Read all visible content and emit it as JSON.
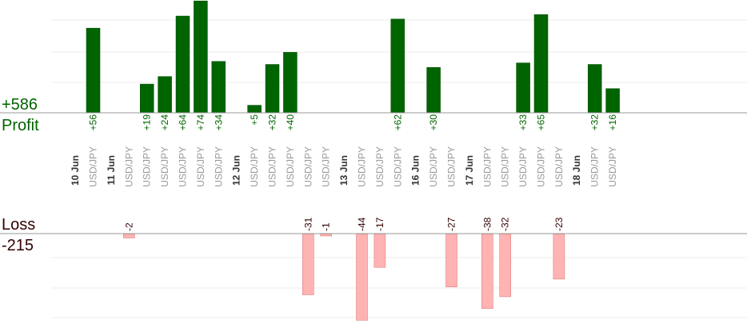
{
  "chart_data": {
    "type": "bar",
    "profit": {
      "label": "Profit",
      "total": "+586",
      "color": "#006400"
    },
    "loss": {
      "label": "Loss",
      "total": "-215",
      "color": "#ffb3b3"
    },
    "dates": [
      "10 Jun",
      "11 Jun",
      "12 Jun",
      "13 Jun",
      "16 Jun",
      "17 Jun",
      "18 Jun"
    ],
    "instrument": "USD/JPY",
    "categories": [
      {
        "date": "10 Jun",
        "instrument": "USD/JPY",
        "value": 56,
        "label": "+56"
      },
      {
        "date": "11 Jun",
        "instrument": "USD/JPY",
        "value": -2,
        "label": "-2"
      },
      {
        "date": "11 Jun",
        "instrument": "USD/JPY",
        "value": 19,
        "label": "+19"
      },
      {
        "date": "11 Jun",
        "instrument": "USD/JPY",
        "value": 24,
        "label": "+24"
      },
      {
        "date": "11 Jun",
        "instrument": "USD/JPY",
        "value": 64,
        "label": "+64"
      },
      {
        "date": "11 Jun",
        "instrument": "USD/JPY",
        "value": 74,
        "label": "+74"
      },
      {
        "date": "11 Jun",
        "instrument": "USD/JPY",
        "value": 34,
        "label": "+34"
      },
      {
        "date": "12 Jun",
        "instrument": "USD/JPY",
        "value": 5,
        "label": "+5"
      },
      {
        "date": "12 Jun",
        "instrument": "USD/JPY",
        "value": 32,
        "label": "+32"
      },
      {
        "date": "12 Jun",
        "instrument": "USD/JPY",
        "value": 40,
        "label": "+40"
      },
      {
        "date": "12 Jun",
        "instrument": "USD/JPY",
        "value": -31,
        "label": "-31"
      },
      {
        "date": "12 Jun",
        "instrument": "USD/JPY",
        "value": -1,
        "label": "-1"
      },
      {
        "date": "13 Jun",
        "instrument": "USD/JPY",
        "value": -44,
        "label": "-44"
      },
      {
        "date": "13 Jun",
        "instrument": "USD/JPY",
        "value": -17,
        "label": "-17"
      },
      {
        "date": "13 Jun",
        "instrument": "USD/JPY",
        "value": 62,
        "label": "+62"
      },
      {
        "date": "16 Jun",
        "instrument": "USD/JPY",
        "value": 30,
        "label": "+30"
      },
      {
        "date": "16 Jun",
        "instrument": "USD/JPY",
        "value": -27,
        "label": "-27"
      },
      {
        "date": "17 Jun",
        "instrument": "USD/JPY",
        "value": -38,
        "label": "-38"
      },
      {
        "date": "17 Jun",
        "instrument": "USD/JPY",
        "value": -32,
        "label": "-32"
      },
      {
        "date": "17 Jun",
        "instrument": "USD/JPY",
        "value": 33,
        "label": "+33"
      },
      {
        "date": "17 Jun",
        "instrument": "USD/JPY",
        "value": 65,
        "label": "+65"
      },
      {
        "date": "17 Jun",
        "instrument": "USD/JPY",
        "value": -23,
        "label": "-23"
      },
      {
        "date": "18 Jun",
        "instrument": "USD/JPY",
        "value": 32,
        "label": "+32"
      },
      {
        "date": "18 Jun",
        "instrument": "USD/JPY",
        "value": 16,
        "label": "+16"
      }
    ],
    "grid": true,
    "legend": "none"
  }
}
